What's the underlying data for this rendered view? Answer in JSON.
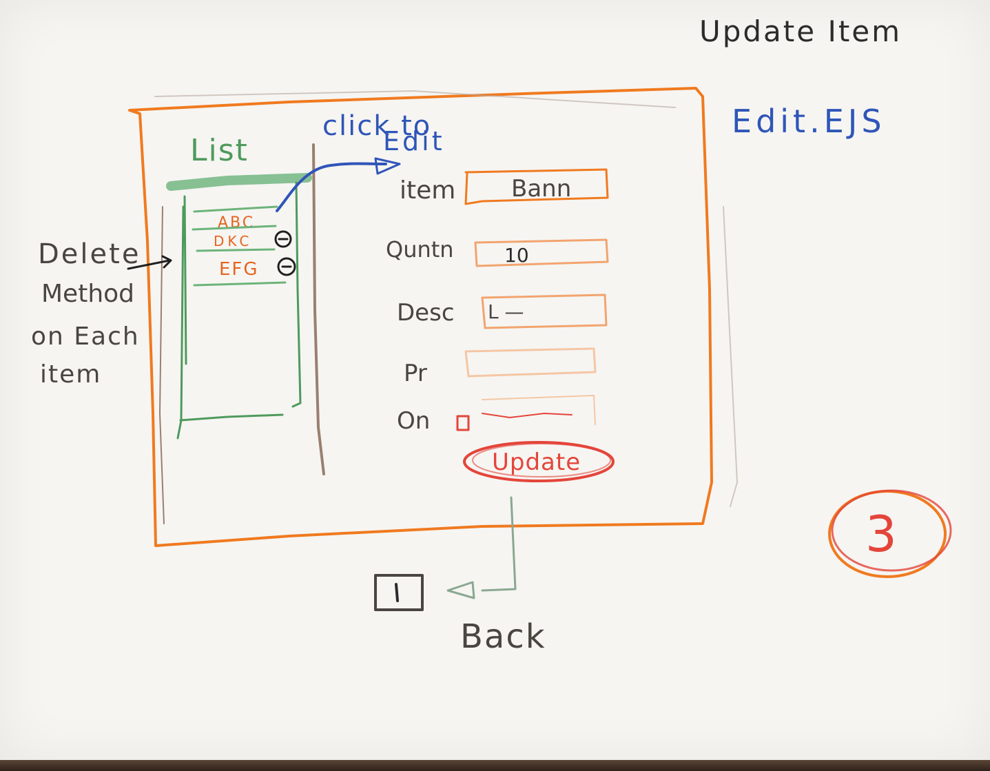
{
  "header": {
    "title": "Update Item",
    "file_name": "Edit.EJS",
    "page_number": "3"
  },
  "list_panel": {
    "title": "List",
    "items": [
      {
        "label": "ABC"
      },
      {
        "label": "DKC"
      },
      {
        "label": "EFG"
      }
    ]
  },
  "annotations": {
    "click_to": "click to",
    "edit": "Edit",
    "delete_note": [
      "Delete",
      "Method",
      "on Each",
      "item"
    ],
    "back": "Back"
  },
  "form": {
    "fields": [
      {
        "label": "item",
        "value": "Bann"
      },
      {
        "label": "Quntn",
        "value": "10"
      },
      {
        "label": "Desc",
        "value": "L —"
      },
      {
        "label": "Pr",
        "value": ""
      }
    ],
    "checkbox_label": "On",
    "update_button": "Update"
  },
  "colors": {
    "frame": "#f07a1f",
    "list": "#5aa86a",
    "annotation": "#2f55b8",
    "button": "#e4453a",
    "divider": "#9a7f70",
    "pencil": "#4a4540"
  }
}
